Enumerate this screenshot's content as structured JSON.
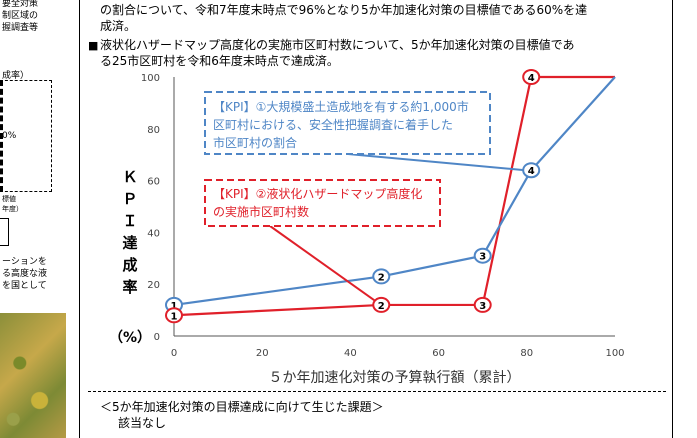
{
  "left_fragments": [
    "要全対策",
    "制区域の",
    "握調査等",
    "成率）",
    "0%",
    "標値",
    "年度）",
    "ーションを",
    "る高度な液",
    "を国として"
  ],
  "intro": {
    "line1": "の割合について、令和7年度末時点で96%となり5か年加速化対策の目標値である60%を達",
    "line2": "成済。",
    "bullet": "■",
    "line3": "液状化ハザードマップ高度化の実施市区町村数について、5か年加速化対策の目標値であ",
    "line4": "る25市区町村を令和6年度末時点で達成済。"
  },
  "chart_data": {
    "type": "line",
    "xlabel": "５か年加速化対策の予算執行額（累計）",
    "ylabel": "ＫＰＩ達成率",
    "ylabel_unit": "（%）",
    "xlim": [
      0,
      100
    ],
    "ylim": [
      0,
      100
    ],
    "x_ticks": [
      "0",
      "20",
      "40",
      "60",
      "80",
      "100"
    ],
    "y_ticks": [
      "0",
      "20",
      "40",
      "60",
      "80",
      "100"
    ],
    "grid": false,
    "colors": {
      "kpi1": "#4f86c6",
      "kpi2": "#e0202a"
    },
    "series": [
      {
        "name": "【KPI】①大規模盛土造成地を有する約1,000市区町村における、安全性把握調査に着手した市区町村の割合",
        "name_lines": [
          "【KPI】①大規模盛土造成地を有する約1,000市",
          "区町村における、安全性把握調査に着手した",
          "市区町村の割合"
        ],
        "x": [
          0,
          47,
          70,
          81,
          100
        ],
        "y": [
          12,
          23,
          31,
          64,
          100
        ],
        "markers": [
          "1",
          "2",
          "3",
          "4",
          ""
        ]
      },
      {
        "name": "【KPI】②液状化ハザードマップ高度化の実施市区町村数",
        "name_lines": [
          "【KPI】②液状化ハザードマップ高度化",
          "の実施市区町村数"
        ],
        "x": [
          0,
          47,
          70,
          81,
          100
        ],
        "y": [
          8,
          12,
          12,
          100,
          100
        ],
        "markers": [
          "1",
          "2",
          "3",
          "4",
          ""
        ]
      }
    ]
  },
  "footer": {
    "title": "＜5か年加速化対策の目標達成に向けて生じた課題＞",
    "text": "該当なし"
  }
}
